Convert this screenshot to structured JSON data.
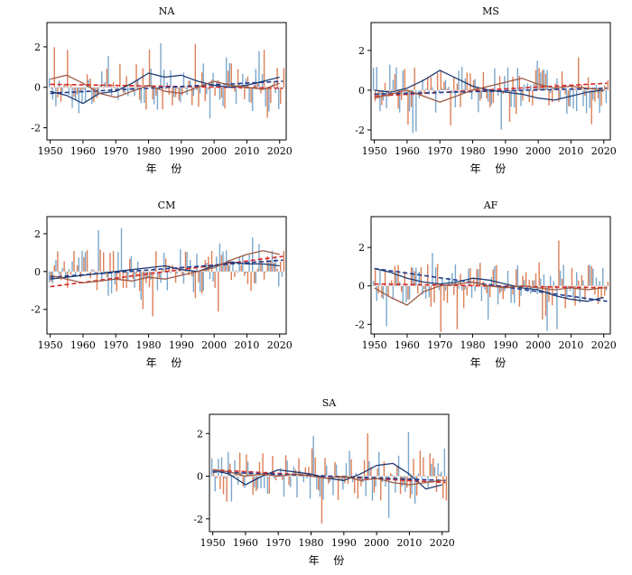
{
  "colors": {
    "bar_a": "#7ba7cc",
    "bar_b": "#dc7f55",
    "line_navy": "#1f3b73",
    "line_brown": "#9c5a44",
    "trend_red": "#d62728",
    "trend_navy": "#1f3b8f"
  },
  "chart_data": [
    {
      "type": "bar",
      "title": "NA",
      "xlabel": "年 份",
      "ylabel": "",
      "xlim": [
        1949,
        2022
      ],
      "ylim": [
        -2.6,
        3.2
      ],
      "xticks": [
        1950,
        1960,
        1970,
        1980,
        1990,
        2000,
        2010,
        2020
      ],
      "yticks": [
        -2,
        0,
        2
      ],
      "grid": false,
      "series": [
        {
          "x": [
            1950,
            2021
          ],
          "values": [
            0.15,
            -0.05
          ],
          "style": "trend",
          "color": "trend_red"
        },
        {
          "x": [
            1950,
            2021
          ],
          "values": [
            -0.3,
            0.3
          ],
          "style": "trend",
          "color": "trend_navy"
        },
        {
          "x": [
            1950,
            1955,
            1960,
            1965,
            1970,
            1975,
            1980,
            1985,
            1990,
            1995,
            2000,
            2005,
            2010,
            2015,
            2020
          ],
          "values": [
            -0.2,
            -0.4,
            -0.8,
            -0.3,
            -0.2,
            0.2,
            0.7,
            0.5,
            0.6,
            0.3,
            0.1,
            0.0,
            0.1,
            0.3,
            0.5
          ],
          "style": "line",
          "color": "line_navy"
        },
        {
          "x": [
            1950,
            1955,
            1960,
            1965,
            1970,
            1975,
            1980,
            1985,
            1990,
            1995,
            2000,
            2005,
            2010,
            2015,
            2020
          ],
          "values": [
            0.4,
            0.6,
            0.2,
            -0.3,
            -0.5,
            -0.2,
            0.1,
            -0.2,
            -0.3,
            0.0,
            0.3,
            0.1,
            0.0,
            -0.1,
            0.2
          ],
          "style": "line",
          "color": "line_brown"
        }
      ]
    },
    {
      "type": "bar",
      "title": "MS",
      "xlabel": "年 份",
      "ylabel": "",
      "xlim": [
        1949,
        2022
      ],
      "ylim": [
        -2.5,
        3.4
      ],
      "xticks": [
        1950,
        1960,
        1970,
        1980,
        1990,
        2000,
        2010,
        2020
      ],
      "yticks": [
        -2,
        0,
        2
      ],
      "grid": false,
      "series": [
        {
          "x": [
            1950,
            2021
          ],
          "values": [
            -0.3,
            0.35
          ],
          "style": "trend",
          "color": "trend_red"
        },
        {
          "x": [
            1950,
            2021
          ],
          "values": [
            -0.2,
            0.1
          ],
          "style": "trend",
          "color": "trend_navy"
        },
        {
          "x": [
            1950,
            1955,
            1960,
            1965,
            1970,
            1975,
            1980,
            1985,
            1990,
            1995,
            2000,
            2005,
            2010,
            2015,
            2020
          ],
          "values": [
            0.0,
            -0.1,
            0.1,
            0.5,
            1.0,
            0.6,
            0.2,
            0.0,
            -0.1,
            -0.2,
            -0.4,
            -0.5,
            -0.3,
            -0.1,
            0.0
          ],
          "style": "line",
          "color": "line_navy"
        },
        {
          "x": [
            1950,
            1955,
            1960,
            1965,
            1970,
            1975,
            1980,
            1985,
            1990,
            1995,
            2000,
            2005,
            2010,
            2015,
            2020
          ],
          "values": [
            -0.4,
            -0.2,
            0.0,
            -0.3,
            -0.6,
            -0.3,
            0.0,
            0.2,
            0.4,
            0.6,
            0.3,
            0.1,
            0.2,
            0.1,
            0.0
          ],
          "style": "line",
          "color": "line_brown"
        }
      ]
    },
    {
      "type": "bar",
      "title": "CM",
      "xlabel": "年 份",
      "ylabel": "",
      "xlim": [
        1949,
        2022
      ],
      "ylim": [
        -3.3,
        2.9
      ],
      "xticks": [
        1950,
        1960,
        1970,
        1980,
        1990,
        2000,
        2010,
        2020
      ],
      "yticks": [
        -2,
        0,
        2
      ],
      "grid": false,
      "series": [
        {
          "x": [
            1950,
            2021
          ],
          "values": [
            -0.8,
            0.8
          ],
          "style": "trend",
          "color": "trend_red"
        },
        {
          "x": [
            1950,
            2021
          ],
          "values": [
            -0.3,
            0.6
          ],
          "style": "trend",
          "color": "trend_navy"
        },
        {
          "x": [
            1950,
            1955,
            1960,
            1965,
            1970,
            1975,
            1980,
            1985,
            1990,
            1995,
            2000,
            2005,
            2010,
            2015,
            2020
          ],
          "values": [
            -0.4,
            -0.3,
            -0.2,
            -0.1,
            0.0,
            0.1,
            0.2,
            0.3,
            0.1,
            0.0,
            0.3,
            0.5,
            0.4,
            0.4,
            0.3
          ],
          "style": "line",
          "color": "line_navy"
        },
        {
          "x": [
            1950,
            1955,
            1960,
            1965,
            1970,
            1975,
            1980,
            1985,
            1990,
            1995,
            2000,
            2005,
            2010,
            2015,
            2020
          ],
          "values": [
            -0.2,
            -0.4,
            -0.6,
            -0.5,
            -0.4,
            -0.5,
            -0.3,
            -0.4,
            -0.2,
            0.0,
            0.2,
            0.6,
            0.9,
            1.1,
            0.9
          ],
          "style": "line",
          "color": "line_brown"
        }
      ]
    },
    {
      "type": "bar",
      "title": "AF",
      "xlabel": "年 份",
      "ylabel": "",
      "xlim": [
        1949,
        2022
      ],
      "ylim": [
        -2.5,
        3.6
      ],
      "xticks": [
        1950,
        1960,
        1970,
        1980,
        1990,
        2000,
        2010,
        2020
      ],
      "yticks": [
        -2,
        0,
        2
      ],
      "grid": false,
      "series": [
        {
          "x": [
            1950,
            2021
          ],
          "values": [
            0.1,
            -0.1
          ],
          "style": "trend",
          "color": "trend_red"
        },
        {
          "x": [
            1950,
            2021
          ],
          "values": [
            0.9,
            -0.8
          ],
          "style": "trend",
          "color": "trend_navy"
        },
        {
          "x": [
            1950,
            1955,
            1960,
            1965,
            1970,
            1975,
            1980,
            1985,
            1990,
            1995,
            2000,
            2005,
            2010,
            2015,
            2020
          ],
          "values": [
            0.9,
            0.7,
            0.4,
            0.2,
            0.1,
            0.2,
            0.4,
            0.3,
            0.1,
            -0.1,
            -0.2,
            -0.5,
            -0.7,
            -0.8,
            -0.6
          ],
          "style": "line",
          "color": "line_navy"
        },
        {
          "x": [
            1950,
            1955,
            1960,
            1965,
            1970,
            1975,
            1980,
            1985,
            1990,
            1995,
            2000,
            2005,
            2010,
            2015,
            2020
          ],
          "values": [
            -0.1,
            -0.6,
            -1.0,
            -0.3,
            0.0,
            0.1,
            0.2,
            0.0,
            -0.1,
            0.0,
            -0.1,
            -0.2,
            -0.1,
            -0.2,
            -0.1
          ],
          "style": "line",
          "color": "line_brown"
        }
      ]
    },
    {
      "type": "bar",
      "title": "SA",
      "xlabel": "年 份",
      "ylabel": "",
      "xlim": [
        1949,
        2022
      ],
      "ylim": [
        -2.6,
        2.9
      ],
      "xticks": [
        1950,
        1960,
        1970,
        1980,
        1990,
        2000,
        2010,
        2020
      ],
      "yticks": [
        -2,
        0,
        2
      ],
      "grid": false,
      "series": [
        {
          "x": [
            1950,
            2021
          ],
          "values": [
            0.3,
            -0.3
          ],
          "style": "trend",
          "color": "trend_red"
        },
        {
          "x": [
            1950,
            2021
          ],
          "values": [
            0.2,
            -0.2
          ],
          "style": "trend",
          "color": "trend_navy"
        },
        {
          "x": [
            1950,
            1955,
            1960,
            1965,
            1970,
            1975,
            1980,
            1985,
            1990,
            1995,
            2000,
            2005,
            2010,
            2015,
            2020
          ],
          "values": [
            0.3,
            0.1,
            -0.4,
            0.0,
            0.3,
            0.2,
            0.1,
            -0.1,
            -0.2,
            0.1,
            0.5,
            0.6,
            0.1,
            -0.6,
            -0.4
          ],
          "style": "line",
          "color": "line_navy"
        },
        {
          "x": [
            1950,
            1955,
            1960,
            1965,
            1970,
            1975,
            1980,
            1985,
            1990,
            1995,
            2000,
            2005,
            2010,
            2015,
            2020
          ],
          "values": [
            0.3,
            0.2,
            0.0,
            0.1,
            0.0,
            0.1,
            0.0,
            -0.1,
            0.0,
            -0.2,
            -0.1,
            -0.3,
            -0.4,
            -0.3,
            -0.2
          ],
          "style": "line",
          "color": "line_brown"
        }
      ]
    }
  ]
}
